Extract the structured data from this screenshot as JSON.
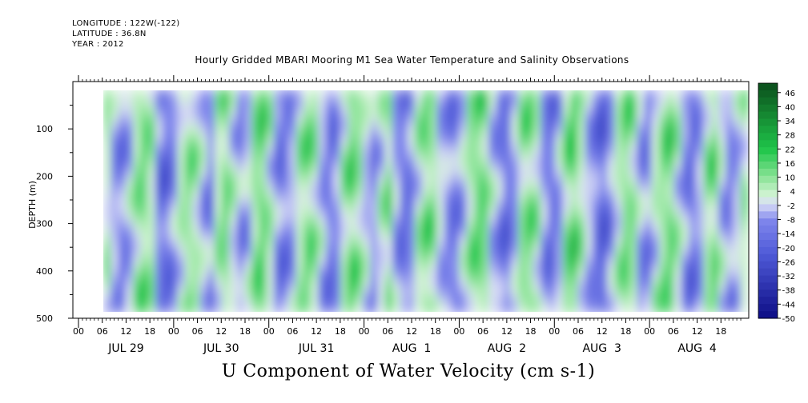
{
  "header": {
    "longitude": "LONGITUDE : 122W(-122)",
    "latitude": "LATITUDE : 36.8N",
    "year": "YEAR : 2012"
  },
  "chart_data": {
    "type": "heatmap",
    "title": "Hourly Gridded MBARI Mooring M1 Sea Water Temperature and Salinity Observations",
    "xlabel": "U Component of Water Velocity (cm s-1)",
    "ylabel": "DEPTH (m)",
    "ylim": [
      500,
      0
    ],
    "y_ticks": [
      100,
      200,
      300,
      400,
      500
    ],
    "x_hour_ticks": [
      "00",
      "06",
      "12",
      "18",
      "00",
      "06",
      "12",
      "18",
      "00",
      "06",
      "12",
      "18",
      "00",
      "06",
      "12",
      "18",
      "00",
      "06",
      "12",
      "18",
      "00",
      "06",
      "12",
      "18",
      "00",
      "06",
      "12",
      "18"
    ],
    "x_day_labels": [
      "JUL 29",
      "JUL 30",
      "JUL 31",
      "AUG  1",
      "AUG  2",
      "AUG  3",
      "AUG  4"
    ],
    "colorbar": {
      "min": -50,
      "max": 50,
      "step": 3,
      "labels": [
        "46",
        "40",
        "34",
        "28",
        "22",
        "16",
        "10",
        "4",
        "-2",
        "-8",
        "-14",
        "-20",
        "-26",
        "-32",
        "-38",
        "-44",
        "-50"
      ],
      "colors": {
        "deep_negative": "#0a0a82",
        "negative": "#7f86ec",
        "near_zero": "#d8dcf6",
        "positive": "#8ee49a",
        "strong_positive": "#1fc64a",
        "deep_positive": "#0b4e1c"
      }
    },
    "column_values": [
      4,
      -6,
      -10,
      -4,
      8,
      12,
      6,
      -12,
      -16,
      -8,
      4,
      10,
      6,
      -4,
      -10,
      6,
      12,
      2,
      -8,
      -4,
      10,
      14,
      4,
      -10,
      -12,
      -6,
      6,
      12,
      8,
      -4,
      -12,
      -8,
      6,
      14,
      8,
      -2,
      -8,
      2,
      10,
      -6,
      -14,
      -10,
      4,
      12,
      10,
      -2,
      -8,
      -12,
      -4,
      8,
      14,
      12,
      -2,
      -10,
      -16,
      -6,
      8,
      12,
      6,
      -8,
      -14,
      -6,
      10,
      16,
      6,
      -4,
      -12,
      -18,
      -8,
      4,
      12,
      8,
      -6,
      -10,
      2,
      10,
      14,
      4,
      -8,
      -14,
      -6,
      8,
      12,
      -2,
      -10,
      -4,
      6
    ]
  }
}
